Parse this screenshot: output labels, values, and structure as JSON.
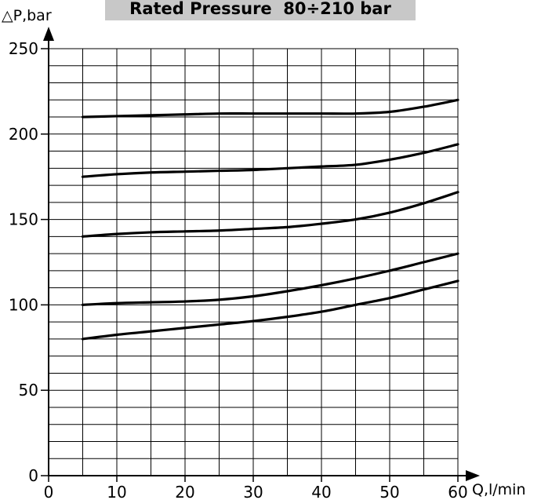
{
  "chart_data": {
    "type": "line",
    "title": "Rated Pressure  80÷210 bar",
    "xlabel": "Q,l/min",
    "ylabel": "△P,bar",
    "xlim": [
      0,
      60
    ],
    "ylim": [
      0,
      250
    ],
    "x_ticks": [
      "0",
      "10",
      "20",
      "30",
      "40",
      "50",
      "60"
    ],
    "y_ticks": [
      "0",
      "50",
      "100",
      "150",
      "200",
      "250"
    ],
    "x_tick_values": [
      0,
      10,
      20,
      30,
      40,
      50,
      60
    ],
    "y_tick_values": [
      0,
      50,
      100,
      150,
      200,
      250
    ],
    "grid": true,
    "grid_x_step": 5,
    "grid_y_step": 10,
    "series": [
      {
        "x": [
          5,
          10,
          15,
          20,
          25,
          30,
          35,
          40,
          45,
          50,
          55,
          60
        ],
        "values": [
          210,
          210.5,
          211,
          211.5,
          212,
          212,
          212,
          212,
          212,
          213,
          216,
          220
        ]
      },
      {
        "x": [
          5,
          10,
          15,
          20,
          25,
          30,
          35,
          40,
          45,
          50,
          55,
          60
        ],
        "values": [
          175,
          176.5,
          177.5,
          178,
          178.5,
          179,
          180,
          181,
          182,
          185,
          189,
          194
        ]
      },
      {
        "x": [
          5,
          10,
          15,
          20,
          25,
          30,
          35,
          40,
          45,
          50,
          55,
          60
        ],
        "values": [
          140,
          141.5,
          142.5,
          143,
          143.5,
          144.5,
          145.5,
          147.5,
          150,
          154,
          159.5,
          166
        ]
      },
      {
        "x": [
          5,
          10,
          15,
          20,
          25,
          30,
          35,
          40,
          45,
          50,
          55,
          60
        ],
        "values": [
          100,
          101,
          101.5,
          102,
          103,
          105,
          108,
          111.5,
          115.5,
          120,
          125,
          130
        ]
      },
      {
        "x": [
          5,
          10,
          15,
          20,
          25,
          30,
          35,
          40,
          45,
          50,
          55,
          60
        ],
        "values": [
          80,
          82.5,
          84.5,
          86.5,
          88.5,
          90.5,
          93,
          96,
          100,
          104,
          109,
          114
        ]
      }
    ]
  }
}
